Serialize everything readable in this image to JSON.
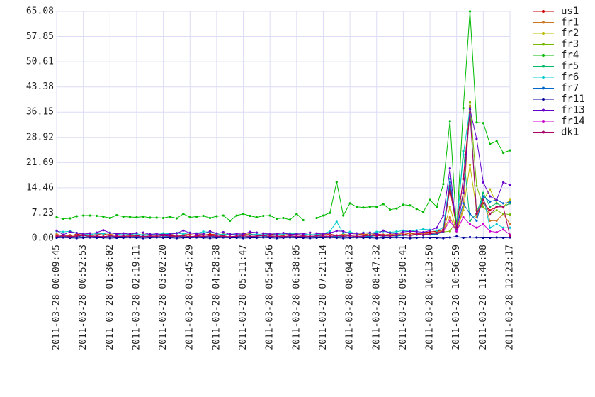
{
  "chart_data": {
    "type": "line",
    "categories": [
      "2011-03-28 00:09:45",
      null,
      null,
      null,
      "2011-03-28 00:52:53",
      null,
      null,
      null,
      "2011-03-28 01:36:02",
      null,
      null,
      null,
      "2011-03-28 02:19:11",
      null,
      null,
      null,
      "2011-03-28 03:02:20",
      null,
      null,
      null,
      "2011-03-28 03:45:29",
      null,
      null,
      null,
      "2011-03-28 04:28:38",
      null,
      null,
      null,
      "2011-03-28 05:11:47",
      null,
      null,
      null,
      "2011-03-28 05:54:56",
      null,
      null,
      null,
      "2011-03-28 06:38:05",
      null,
      null,
      null,
      "2011-03-28 07:21:14",
      null,
      null,
      null,
      "2011-03-28 08:04:23",
      null,
      null,
      null,
      "2011-03-28 08:47:32",
      null,
      null,
      null,
      "2011-03-28 09:30:41",
      null,
      null,
      null,
      "2011-03-28 10:13:50",
      null,
      null,
      null,
      "2011-03-28 10:56:59",
      null,
      null,
      null,
      "2011-03-28 11:40:08",
      null,
      null,
      null,
      "2011-03-28 12:23:17"
    ],
    "ylim": [
      0,
      65.08
    ],
    "yticks": [
      {
        "value": 0,
        "label": "0.00"
      },
      {
        "value": 7.23,
        "label": "7.23"
      },
      {
        "value": 14.46,
        "label": "14.46"
      },
      {
        "value": 21.69,
        "label": "21.69"
      },
      {
        "value": 28.92,
        "label": "28.92"
      },
      {
        "value": 36.15,
        "label": "36.15"
      },
      {
        "value": 43.38,
        "label": "43.38"
      },
      {
        "value": 50.61,
        "label": "50.61"
      },
      {
        "value": 57.85,
        "label": "57.85"
      },
      {
        "value": 65.08,
        "label": "65.08"
      }
    ],
    "grid": true,
    "legend": "right",
    "series": [
      {
        "name": "us1",
        "color": "#cc0000",
        "values": [
          0.8,
          1.0,
          0.6,
          1.2,
          0.9,
          0.7,
          1.1,
          1.3,
          0.8,
          1.0,
          0.9,
          1.2,
          0.7,
          1.1,
          1.0,
          0.8,
          1.2,
          0.9,
          0.6,
          1.0,
          1.1,
          0.8,
          0.9,
          1.2,
          1.0,
          0.7,
          1.1,
          0.9,
          1.0,
          1.3,
          0.8,
          0.9,
          1.1,
          1.0,
          0.7,
          1.2,
          1.0,
          0.8,
          1.1,
          0.9,
          1.0,
          1.2,
          0.8,
          1.1,
          0.9,
          1.0,
          1.3,
          0.8,
          1.2,
          1.0,
          0.9,
          1.1,
          1.0,
          1.4,
          1.2,
          1.6,
          1.8,
          2.0,
          2.5,
          14,
          3,
          17,
          37.5,
          7,
          10,
          8,
          9,
          9,
          10
        ]
      },
      {
        "name": "fr1",
        "color": "#cc7722",
        "values": [
          1.2,
          0.6,
          0.9,
          0.8,
          1.1,
          0.7,
          1.0,
          0.9,
          1.2,
          0.8,
          1.0,
          0.7,
          0.9,
          1.1,
          0.8,
          1.0,
          0.9,
          1.2,
          0.7,
          0.8,
          0.9,
          1.0,
          1.1,
          0.8,
          0.9,
          1.2,
          1.0,
          0.9,
          1.4,
          1.0,
          0.9,
          1.1,
          0.8,
          1.0,
          0.9,
          1.2,
          1.1,
          0.8,
          1.0,
          0.9,
          1.1,
          1.0,
          0.8,
          1.2,
          0.9,
          1.0,
          1.1,
          1.3,
          1.0,
          0.9,
          1.2,
          1.0,
          1.5,
          1.3,
          1.1,
          1.4,
          1.2,
          1.8,
          2.2,
          6,
          2,
          9,
          38,
          6,
          11,
          5,
          5,
          7,
          4
        ]
      },
      {
        "name": "fr2",
        "color": "#bbbb00",
        "values": [
          0.5,
          0.7,
          0.4,
          0.6,
          0.8,
          0.5,
          0.6,
          0.4,
          0.7,
          0.5,
          0.6,
          0.5,
          0.7,
          0.4,
          0.6,
          0.5,
          0.8,
          0.6,
          0.5,
          0.7,
          0.4,
          0.6,
          0.5,
          0.7,
          0.6,
          0.5,
          0.4,
          0.6,
          0.7,
          0.5,
          0.6,
          0.8,
          0.5,
          0.6,
          0.4,
          0.7,
          0.5,
          0.6,
          0.5,
          0.7,
          0.6,
          0.5,
          0.8,
          0.6,
          0.7,
          0.5,
          0.6,
          0.9,
          0.7,
          0.8,
          0.6,
          0.9,
          1.0,
          0.8,
          1.2,
          1.0,
          1.3,
          1.5,
          2.0,
          9,
          2,
          8,
          21,
          8,
          11,
          14,
          10,
          9,
          11
        ]
      },
      {
        "name": "fr3",
        "color": "#77bb00",
        "values": [
          0.3,
          0.5,
          0.4,
          0.6,
          0.3,
          0.4,
          0.5,
          0.3,
          0.6,
          0.4,
          0.5,
          0.3,
          0.4,
          0.6,
          0.5,
          0.3,
          0.4,
          0.5,
          0.6,
          0.3,
          0.4,
          0.5,
          0.3,
          0.6,
          0.4,
          0.5,
          0.3,
          0.4,
          0.6,
          0.5,
          0.3,
          0.4,
          0.5,
          0.6,
          0.3,
          0.4,
          0.5,
          0.3,
          0.4,
          0.6,
          0.5,
          0.4,
          0.6,
          0.5,
          0.7,
          0.4,
          0.6,
          0.5,
          0.8,
          0.6,
          0.7,
          0.6,
          0.9,
          0.8,
          1.0,
          0.9,
          1.1,
          1.2,
          1.8,
          2,
          5,
          13,
          39,
          15,
          9,
          7,
          8,
          7,
          6.8
        ]
      },
      {
        "name": "fr4",
        "color": "#00bb00",
        "values": [
          6.0,
          5.6,
          5.7,
          6.3,
          6.5,
          6.5,
          6.4,
          6.2,
          5.8,
          6.6,
          6.2,
          6.1,
          6.0,
          6.2,
          5.9,
          5.9,
          5.8,
          6.2,
          5.7,
          7.0,
          6.0,
          6.2,
          6.4,
          5.8,
          6.3,
          6.5,
          5.0,
          6.5,
          7.0,
          6.4,
          6.0,
          6.4,
          6.5,
          5.6,
          5.8,
          5.3,
          7.0,
          5.2,
          null,
          5.8,
          6.5,
          7.3,
          16.1,
          6.5,
          10.0,
          9.0,
          8.8,
          9.0,
          9.0,
          9.8,
          8.2,
          8.5,
          9.6,
          9.4,
          8.4,
          7.5,
          11.0,
          9.0,
          15.5,
          33.6,
          2.5,
          37.3,
          65.08,
          33.2,
          33.0,
          27.0,
          27.8,
          24.5,
          25.2
        ]
      },
      {
        "name": "fr5",
        "color": "#00bb66",
        "values": [
          0.3,
          0.5,
          0.4,
          0.6,
          0.3,
          0.4,
          0.5,
          0.3,
          0.6,
          0.4,
          0.5,
          0.3,
          0.4,
          0.6,
          0.5,
          0.3,
          0.4,
          0.5,
          0.6,
          0.3,
          0.4,
          0.5,
          0.3,
          0.6,
          0.4,
          0.5,
          0.3,
          0.4,
          0.6,
          0.5,
          0.3,
          0.4,
          0.5,
          0.6,
          0.3,
          0.4,
          0.5,
          0.3,
          0.4,
          0.6,
          0.5,
          0.4,
          0.6,
          0.5,
          0.7,
          0.4,
          0.6,
          0.5,
          0.8,
          0.6,
          0.7,
          0.6,
          0.9,
          0.8,
          1.0,
          0.9,
          1.1,
          1.2,
          1.8,
          15,
          3,
          25,
          5,
          7,
          13,
          9,
          10,
          9,
          10
        ]
      },
      {
        "name": "fr6",
        "color": "#00cccc",
        "values": [
          2.0,
          1.8,
          2.0,
          1.5,
          1.2,
          1.0,
          1.4,
          1.3,
          1.6,
          1.2,
          1.0,
          1.1,
          1.3,
          0.9,
          1.2,
          1.0,
          1.4,
          1.3,
          1.5,
          1.2,
          1.6,
          1.4,
          1.9,
          1.7,
          1.3,
          1.0,
          1.2,
          1.1,
          0.9,
          1.0,
          1.2,
          1.0,
          1.3,
          1.1,
          1.2,
          1.4,
          1.3,
          1.2,
          1.0,
          1.1,
          1.3,
          2.0,
          4.7,
          1.5,
          1.8,
          1.3,
          1.6,
          1.4,
          1.8,
          2.0,
          1.7,
          1.9,
          2.2,
          2.0,
          2.3,
          2.6,
          2.4,
          2.2,
          3.0,
          17,
          3,
          24,
          37.2,
          7,
          12,
          3,
          4,
          3,
          3
        ]
      },
      {
        "name": "fr7",
        "color": "#0066cc",
        "values": [
          0.3,
          0.5,
          0.4,
          0.6,
          0.3,
          0.4,
          0.5,
          0.3,
          0.6,
          0.4,
          0.5,
          0.3,
          0.4,
          0.6,
          0.5,
          0.3,
          0.4,
          0.5,
          0.6,
          0.3,
          0.4,
          0.5,
          0.3,
          0.6,
          0.4,
          0.5,
          0.3,
          0.4,
          0.6,
          0.5,
          0.3,
          0.4,
          0.5,
          0.6,
          0.3,
          0.4,
          0.5,
          0.3,
          0.4,
          0.6,
          0.5,
          0.4,
          0.6,
          0.5,
          0.7,
          0.4,
          0.6,
          0.5,
          0.8,
          0.6,
          0.7,
          0.6,
          0.9,
          0.8,
          1.0,
          0.9,
          1.1,
          1.2,
          1.8,
          16,
          3,
          10,
          7,
          5,
          12,
          10.5,
          11,
          10,
          10.3
        ]
      },
      {
        "name": "fr11",
        "color": "#000099",
        "values": [
          0.1,
          0.2,
          0.1,
          0.0,
          0.1,
          0.2,
          0.1,
          0.1,
          0.0,
          0.1,
          0.1,
          0.2,
          0.1,
          0.0,
          0.1,
          0.2,
          0.1,
          0.1,
          0.0,
          0.1,
          0.1,
          0.2,
          0.1,
          0.0,
          0.1,
          0.2,
          0.1,
          0.1,
          0.0,
          0.1,
          0.1,
          0.2,
          0.1,
          0.0,
          0.1,
          0.2,
          0.1,
          0.1,
          0.0,
          0.1,
          0.1,
          0.2,
          0.1,
          0.0,
          0.1,
          0.2,
          0.1,
          0.1,
          0.0,
          0.1,
          0.1,
          0.2,
          0.1,
          0.0,
          0.1,
          0.2,
          0.1,
          0.1,
          0.0,
          0.2,
          0.5,
          0.1,
          0.3,
          0.2,
          0.1,
          0.1,
          0.2,
          0.1,
          0.2
        ]
      },
      {
        "name": "fr13",
        "color": "#6600cc",
        "values": [
          2.2,
          1.0,
          1.8,
          1.5,
          1.2,
          1.4,
          1.6,
          2.3,
          1.5,
          1.3,
          1.4,
          1.2,
          1.5,
          1.6,
          1.1,
          1.3,
          1.0,
          1.2,
          1.4,
          2.2,
          1.5,
          1.3,
          1.2,
          2.0,
          1.4,
          1.7,
          1.1,
          1.3,
          1.2,
          1.8,
          1.6,
          1.4,
          1.2,
          1.3,
          1.5,
          1.1,
          1.2,
          1.3,
          1.6,
          1.4,
          1.2,
          1.5,
          2.1,
          2.0,
          1.3,
          1.4,
          1.5,
          1.6,
          1.2,
          2.2,
          1.5,
          1.3,
          1.8,
          2.0,
          1.9,
          1.7,
          2.2,
          3.0,
          6.5,
          20,
          2,
          13,
          37,
          28.5,
          16,
          12,
          11,
          16,
          15.3
        ]
      },
      {
        "name": "fr14",
        "color": "#cc00cc",
        "values": [
          0.5,
          0.7,
          0.4,
          0.6,
          0.8,
          0.5,
          0.6,
          0.4,
          0.7,
          0.5,
          0.6,
          0.5,
          0.7,
          0.4,
          0.6,
          0.5,
          0.8,
          0.6,
          0.5,
          0.7,
          0.4,
          0.6,
          0.5,
          0.7,
          0.6,
          0.5,
          0.4,
          0.6,
          0.7,
          0.5,
          0.6,
          0.8,
          0.5,
          0.6,
          0.4,
          0.7,
          0.5,
          0.6,
          0.5,
          0.7,
          0.6,
          0.5,
          0.8,
          0.6,
          0.7,
          0.5,
          0.6,
          0.9,
          0.7,
          0.8,
          0.6,
          0.9,
          1.0,
          0.8,
          1.2,
          1.0,
          1.3,
          1.5,
          2.0,
          5,
          2,
          6,
          4,
          3,
          4,
          2,
          1.7,
          2.5,
          1
        ]
      },
      {
        "name": "dk1",
        "color": "#aa0066",
        "values": [
          0.5,
          0.7,
          0.4,
          0.6,
          0.8,
          0.5,
          0.6,
          0.4,
          0.7,
          0.5,
          0.6,
          0.5,
          0.7,
          0.4,
          0.6,
          0.5,
          0.8,
          0.6,
          0.5,
          0.7,
          0.4,
          0.6,
          0.5,
          0.7,
          0.6,
          0.5,
          0.4,
          0.6,
          0.7,
          0.5,
          0.6,
          0.8,
          0.5,
          0.6,
          0.4,
          0.7,
          0.5,
          0.6,
          0.5,
          0.7,
          0.6,
          0.5,
          0.8,
          0.6,
          0.7,
          0.5,
          0.6,
          0.9,
          0.7,
          0.8,
          0.6,
          0.9,
          1.0,
          0.8,
          1.2,
          1.0,
          1.3,
          1.5,
          2.0,
          15,
          3,
          17,
          36,
          7,
          11,
          7,
          9,
          9,
          0.5
        ]
      }
    ]
  }
}
